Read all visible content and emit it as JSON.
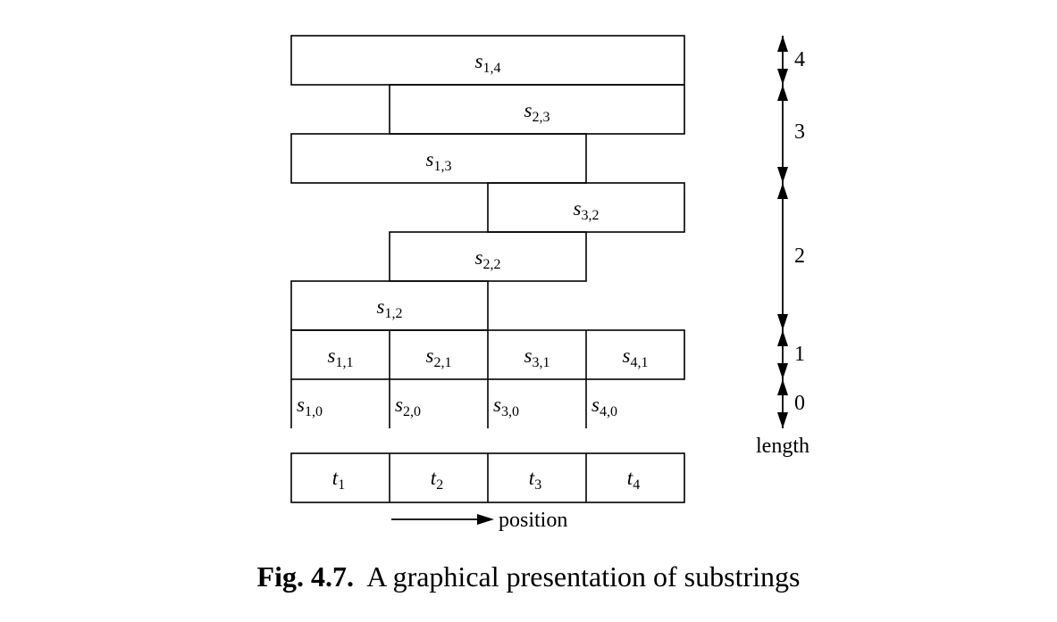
{
  "substring_rows": [
    {
      "length": "4",
      "cells": [
        {
          "base": "s",
          "sub": "1,4"
        }
      ]
    },
    {
      "length": "3",
      "cells": [
        {
          "base": "s",
          "sub": "2,3"
        }
      ]
    },
    {
      "length": "3",
      "cells": [
        {
          "base": "s",
          "sub": "1,3"
        }
      ]
    },
    {
      "length": "2",
      "cells": [
        {
          "base": "s",
          "sub": "3,2"
        }
      ]
    },
    {
      "length": "2",
      "cells": [
        {
          "base": "s",
          "sub": "2,2"
        }
      ]
    },
    {
      "length": "2",
      "cells": [
        {
          "base": "s",
          "sub": "1,2"
        }
      ]
    },
    {
      "length": "1",
      "cells": [
        {
          "base": "s",
          "sub": "1,1"
        },
        {
          "base": "s",
          "sub": "2,1"
        },
        {
          "base": "s",
          "sub": "3,1"
        },
        {
          "base": "s",
          "sub": "4,1"
        }
      ]
    },
    {
      "length": "0",
      "cells": [
        {
          "base": "s",
          "sub": "1,0"
        },
        {
          "base": "s",
          "sub": "2,0"
        },
        {
          "base": "s",
          "sub": "3,0"
        },
        {
          "base": "s",
          "sub": "4,0"
        }
      ]
    }
  ],
  "text_cells": [
    {
      "base": "t",
      "sub": "1"
    },
    {
      "base": "t",
      "sub": "2"
    },
    {
      "base": "t",
      "sub": "3"
    },
    {
      "base": "t",
      "sub": "4"
    }
  ],
  "length_axis": {
    "label": "length",
    "ticks": [
      "4",
      "3",
      "2",
      "1",
      "0"
    ]
  },
  "position_axis": {
    "label": "position"
  },
  "caption": {
    "number": "Fig. 4.7.",
    "text": "A graphical presentation of substrings"
  }
}
